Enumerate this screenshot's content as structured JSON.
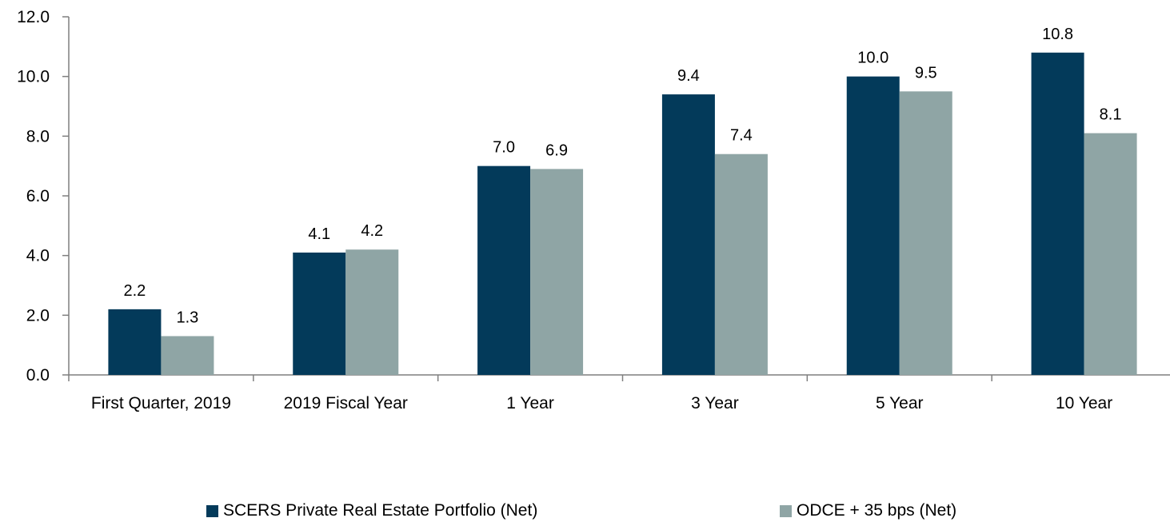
{
  "chart_data": {
    "type": "bar",
    "categories": [
      "First Quarter, 2019",
      "2019 Fiscal Year",
      "1 Year",
      "3 Year",
      "5 Year",
      "10 Year"
    ],
    "series": [
      {
        "name": "SCERS Private Real Estate Portfolio (Net)",
        "values": [
          2.2,
          4.1,
          7.0,
          9.4,
          10.0,
          10.8
        ],
        "labels": [
          "2.2",
          "4.1",
          "7.0",
          "9.4",
          "10.0",
          "10.8"
        ],
        "color": "#033A5A"
      },
      {
        "name": "ODCE + 35 bps (Net)",
        "values": [
          1.3,
          4.2,
          6.9,
          7.4,
          9.5,
          8.1
        ],
        "labels": [
          "1.3",
          "4.2",
          "6.9",
          "7.4",
          "9.5",
          "8.1"
        ],
        "color": "#8FA5A5"
      }
    ],
    "title": "",
    "xlabel": "",
    "ylabel": "",
    "ylim": [
      0,
      12
    ],
    "yticks": [
      "0.0",
      "2.0",
      "4.0",
      "6.0",
      "8.0",
      "10.0",
      "12.0"
    ],
    "ytick_values": [
      0,
      2,
      4,
      6,
      8,
      10,
      12
    ],
    "grid": false,
    "legend_position": "bottom"
  }
}
